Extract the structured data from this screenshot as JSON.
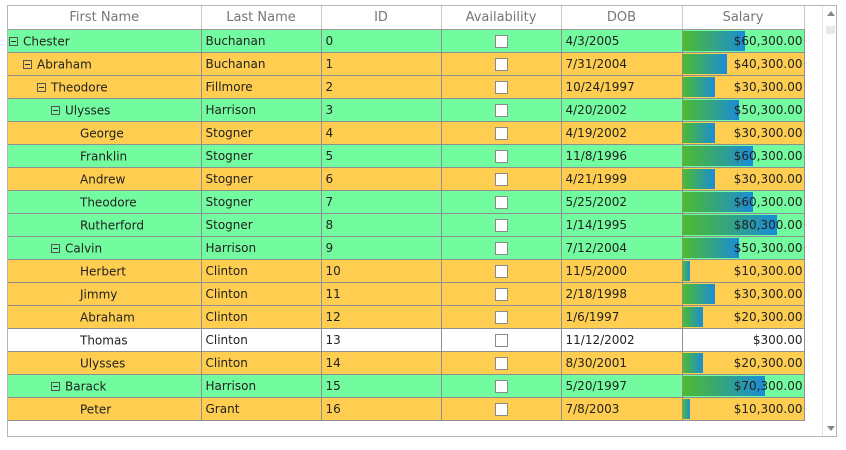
{
  "columns": [
    "First Name",
    "Last Name",
    "ID",
    "Availability",
    "DOB",
    "Salary"
  ],
  "rows": [
    {
      "first": "Chester",
      "last": "Buchanan",
      "id": "0",
      "dob": "4/3/2005",
      "salary": "$60,300.00",
      "bar_pct": 0.52,
      "level": 0,
      "expanded": true,
      "color": "green"
    },
    {
      "first": "Abraham",
      "last": "Buchanan",
      "id": "1",
      "dob": "7/31/2004",
      "salary": "$40,300.00",
      "bar_pct": 0.37,
      "level": 1,
      "expanded": true,
      "color": "orange"
    },
    {
      "first": "Theodore",
      "last": "Fillmore",
      "id": "2",
      "dob": "10/24/1997",
      "salary": "$30,300.00",
      "bar_pct": 0.27,
      "level": 2,
      "expanded": true,
      "color": "orange"
    },
    {
      "first": "Ulysses",
      "last": "Harrison",
      "id": "3",
      "dob": "4/20/2002",
      "salary": "$50,300.00",
      "bar_pct": 0.47,
      "level": 3,
      "expanded": true,
      "color": "green"
    },
    {
      "first": "George",
      "last": "Stogner",
      "id": "4",
      "dob": "4/19/2002",
      "salary": "$30,300.00",
      "bar_pct": 0.27,
      "level": 4,
      "expanded": false,
      "color": "orange"
    },
    {
      "first": "Franklin",
      "last": "Stogner",
      "id": "5",
      "dob": "11/8/1996",
      "salary": "$60,300.00",
      "bar_pct": 0.58,
      "level": 4,
      "expanded": false,
      "color": "green"
    },
    {
      "first": "Andrew",
      "last": "Stogner",
      "id": "6",
      "dob": "4/21/1999",
      "salary": "$30,300.00",
      "bar_pct": 0.27,
      "level": 4,
      "expanded": false,
      "color": "orange"
    },
    {
      "first": "Theodore",
      "last": "Stogner",
      "id": "7",
      "dob": "5/25/2002",
      "salary": "$60,300.00",
      "bar_pct": 0.58,
      "level": 4,
      "expanded": false,
      "color": "green"
    },
    {
      "first": "Rutherford",
      "last": "Stogner",
      "id": "8",
      "dob": "1/14/1995",
      "salary": "$80,300.00",
      "bar_pct": 0.78,
      "level": 4,
      "expanded": false,
      "color": "green"
    },
    {
      "first": "Calvin",
      "last": "Harrison",
      "id": "9",
      "dob": "7/12/2004",
      "salary": "$50,300.00",
      "bar_pct": 0.47,
      "level": 3,
      "expanded": true,
      "color": "green"
    },
    {
      "first": "Herbert",
      "last": "Clinton",
      "id": "10",
      "dob": "11/5/2000",
      "salary": "$10,300.00",
      "bar_pct": 0.06,
      "level": 4,
      "expanded": false,
      "color": "orange"
    },
    {
      "first": "Jimmy",
      "last": "Clinton",
      "id": "11",
      "dob": "2/18/1998",
      "salary": "$30,300.00",
      "bar_pct": 0.27,
      "level": 4,
      "expanded": false,
      "color": "orange"
    },
    {
      "first": "Abraham",
      "last": "Clinton",
      "id": "12",
      "dob": "1/6/1997",
      "salary": "$20,300.00",
      "bar_pct": 0.17,
      "level": 4,
      "expanded": false,
      "color": "orange"
    },
    {
      "first": "Thomas",
      "last": "Clinton",
      "id": "13",
      "dob": "11/12/2002",
      "salary": "$300.00",
      "bar_pct": 0,
      "level": 4,
      "expanded": false,
      "color": "white"
    },
    {
      "first": "Ulysses",
      "last": "Clinton",
      "id": "14",
      "dob": "8/30/2001",
      "salary": "$20,300.00",
      "bar_pct": 0.17,
      "level": 4,
      "expanded": false,
      "color": "orange"
    },
    {
      "first": "Barack",
      "last": "Harrison",
      "id": "15",
      "dob": "5/20/1997",
      "salary": "$70,300.00",
      "bar_pct": 0.68,
      "level": 3,
      "expanded": true,
      "color": "green"
    },
    {
      "first": "Peter",
      "last": "Grant",
      "id": "16",
      "dob": "7/8/2003",
      "salary": "$10,300.00",
      "bar_pct": 0.06,
      "level": 4,
      "expanded": false,
      "color": "orange"
    }
  ],
  "colors": {
    "green": "#73fc9f",
    "orange": "#ffce50",
    "white": "#ffffff",
    "bar_start": "#4dbb2e",
    "bar_end": "#1a8cd8"
  },
  "icons": {
    "expander": "minus-box-icon",
    "scroll_up": "chevron-up-icon",
    "scroll_down": "chevron-down-icon"
  }
}
